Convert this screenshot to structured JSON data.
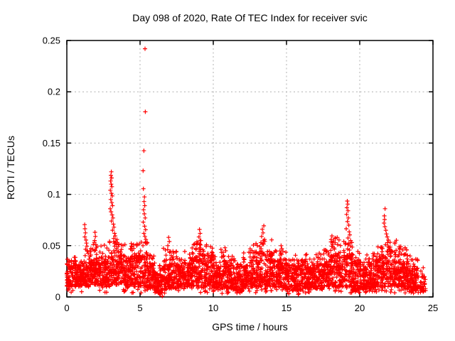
{
  "chart_data": {
    "type": "scatter",
    "title": "Day 098 of 2020, Rate Of TEC Index for receiver svic",
    "xlabel": "GPS time / hours",
    "ylabel": "ROTI / TECUs",
    "xlim": [
      0,
      25
    ],
    "ylim": [
      0,
      0.25
    ],
    "xticks": [
      0,
      5,
      10,
      15,
      20,
      25
    ],
    "xtick_labels": [
      "0",
      "5",
      "10",
      "15",
      "20",
      "25"
    ],
    "yticks": [
      0,
      0.05,
      0.1,
      0.15,
      0.2,
      0.25
    ],
    "ytick_labels": [
      "0",
      "0.05",
      "0.1",
      "0.15",
      "0.2",
      "0.25"
    ],
    "grid": true,
    "legend_position": "none",
    "marker": "plus",
    "marker_color": "#ff0000",
    "grid_color": "#b0b0b0",
    "axis_color": "#000000",
    "background_color": "#ffffff",
    "series": [
      {
        "name": "ROTI",
        "bin_hours": 0.5,
        "points_per_bin": 78,
        "band_bins": [
          [
            0.01,
            0.028,
            0.038
          ],
          [
            0.01,
            0.03,
            0.04
          ],
          [
            0.01,
            0.032,
            0.046
          ],
          [
            0.012,
            0.036,
            0.055
          ],
          [
            0.012,
            0.034,
            0.05
          ],
          [
            0.01,
            0.035,
            0.055
          ],
          [
            0.012,
            0.04,
            0.055
          ],
          [
            0.012,
            0.038,
            0.052
          ],
          [
            0.01,
            0.035,
            0.05
          ],
          [
            0.01,
            0.038,
            0.054
          ],
          [
            0.01,
            0.04,
            0.055
          ],
          [
            0.008,
            0.03,
            0.042
          ],
          [
            0.005,
            0.022,
            0.032
          ],
          [
            0.008,
            0.03,
            0.048
          ],
          [
            0.008,
            0.032,
            0.046
          ],
          [
            0.008,
            0.028,
            0.04
          ],
          [
            0.01,
            0.032,
            0.045
          ],
          [
            0.01,
            0.038,
            0.054
          ],
          [
            0.01,
            0.04,
            0.056
          ],
          [
            0.01,
            0.038,
            0.052
          ],
          [
            0.008,
            0.028,
            0.04
          ],
          [
            0.008,
            0.032,
            0.048
          ],
          [
            0.008,
            0.028,
            0.04
          ],
          [
            0.006,
            0.024,
            0.034
          ],
          [
            0.008,
            0.03,
            0.044
          ],
          [
            0.01,
            0.038,
            0.054
          ],
          [
            0.01,
            0.042,
            0.058
          ],
          [
            0.01,
            0.04,
            0.056
          ],
          [
            0.01,
            0.034,
            0.048
          ],
          [
            0.008,
            0.032,
            0.046
          ],
          [
            0.006,
            0.028,
            0.04
          ],
          [
            0.006,
            0.03,
            0.042
          ],
          [
            0.008,
            0.03,
            0.043
          ],
          [
            0.008,
            0.027,
            0.037
          ],
          [
            0.008,
            0.03,
            0.043
          ],
          [
            0.01,
            0.034,
            0.05
          ],
          [
            0.01,
            0.04,
            0.058
          ],
          [
            0.01,
            0.04,
            0.056
          ],
          [
            0.01,
            0.04,
            0.056
          ],
          [
            0.006,
            0.032,
            0.046
          ],
          [
            0.008,
            0.03,
            0.042
          ],
          [
            0.008,
            0.032,
            0.046
          ],
          [
            0.01,
            0.036,
            0.052
          ],
          [
            0.01,
            0.04,
            0.056
          ],
          [
            0.01,
            0.04,
            0.056
          ],
          [
            0.01,
            0.034,
            0.05
          ],
          [
            0.008,
            0.032,
            0.048
          ],
          [
            0.006,
            0.026,
            0.038
          ],
          [
            0.006,
            0.02,
            0.03,
            40
          ]
        ],
        "peak_points": [
          [
            1.22,
            0.0705
          ],
          [
            1.24,
            0.0665
          ],
          [
            1.27,
            0.0625
          ],
          [
            1.23,
            0.0585
          ],
          [
            1.31,
            0.0555
          ],
          [
            1.34,
            0.0525
          ],
          [
            1.37,
            0.0495
          ],
          [
            1.28,
            0.0465
          ],
          [
            1.41,
            0.0445
          ],
          [
            1.46,
            0.0425
          ],
          [
            1.92,
            0.063
          ],
          [
            1.95,
            0.059
          ],
          [
            1.9,
            0.055
          ],
          [
            1.98,
            0.051
          ],
          [
            2.02,
            0.048
          ],
          [
            1.88,
            0.045
          ],
          [
            3.04,
            0.122
          ],
          [
            3.01,
            0.1185
          ],
          [
            3.06,
            0.116
          ],
          [
            2.99,
            0.113
          ],
          [
            3.03,
            0.11
          ],
          [
            3.08,
            0.1075
          ],
          [
            2.97,
            0.104
          ],
          [
            3.05,
            0.101
          ],
          [
            3.1,
            0.0985
          ],
          [
            3.0,
            0.095
          ],
          [
            3.07,
            0.092
          ],
          [
            3.12,
            0.089
          ],
          [
            2.96,
            0.086
          ],
          [
            3.02,
            0.083
          ],
          [
            3.09,
            0.08
          ],
          [
            3.15,
            0.077
          ],
          [
            3.05,
            0.074
          ],
          [
            3.18,
            0.071
          ],
          [
            3.22,
            0.068
          ],
          [
            3.12,
            0.065
          ],
          [
            3.26,
            0.062
          ],
          [
            3.3,
            0.0595
          ],
          [
            3.2,
            0.057
          ],
          [
            3.35,
            0.0545
          ],
          [
            3.42,
            0.056
          ],
          [
            3.45,
            0.053
          ],
          [
            3.38,
            0.051
          ],
          [
            3.5,
            0.049
          ],
          [
            4.4,
            0.052
          ],
          [
            4.45,
            0.049
          ],
          [
            4.35,
            0.047
          ],
          [
            5.34,
            0.242
          ],
          [
            5.36,
            0.1805
          ],
          [
            5.26,
            0.1425
          ],
          [
            5.21,
            0.123
          ],
          [
            5.23,
            0.1055
          ],
          [
            5.3,
            0.0975
          ],
          [
            5.27,
            0.093
          ],
          [
            5.32,
            0.089
          ],
          [
            5.24,
            0.085
          ],
          [
            5.29,
            0.081
          ],
          [
            5.35,
            0.077
          ],
          [
            5.22,
            0.073
          ],
          [
            5.31,
            0.069
          ],
          [
            5.38,
            0.0655
          ],
          [
            5.26,
            0.062
          ],
          [
            5.33,
            0.059
          ],
          [
            5.4,
            0.056
          ],
          [
            5.36,
            0.053
          ],
          [
            5.2,
            0.05
          ],
          [
            6.95,
            0.058
          ],
          [
            7.0,
            0.054
          ],
          [
            6.9,
            0.05
          ],
          [
            9.06,
            0.0658
          ],
          [
            9.1,
            0.062
          ],
          [
            9.02,
            0.0585
          ],
          [
            9.15,
            0.055
          ],
          [
            9.08,
            0.0515
          ],
          [
            10.8,
            0.048
          ],
          [
            10.85,
            0.045
          ],
          [
            13.45,
            0.0693
          ],
          [
            13.35,
            0.066
          ],
          [
            13.4,
            0.0625
          ],
          [
            13.3,
            0.059
          ],
          [
            13.5,
            0.056
          ],
          [
            13.25,
            0.053
          ],
          [
            14.63,
            0.05
          ],
          [
            14.68,
            0.047
          ],
          [
            14.96,
            0.0436
          ],
          [
            18.1,
            0.0595
          ],
          [
            18.05,
            0.056
          ],
          [
            18.46,
            0.058
          ],
          [
            18.15,
            0.053
          ],
          [
            19.15,
            0.0935
          ],
          [
            19.18,
            0.0905
          ],
          [
            19.12,
            0.087
          ],
          [
            19.2,
            0.084
          ],
          [
            19.1,
            0.0805
          ],
          [
            19.22,
            0.077
          ],
          [
            19.16,
            0.0735
          ],
          [
            19.25,
            0.07
          ],
          [
            19.08,
            0.0665
          ],
          [
            19.28,
            0.0635
          ],
          [
            19.32,
            0.0605
          ],
          [
            19.2,
            0.0575
          ],
          [
            19.38,
            0.055
          ],
          [
            19.05,
            0.0525
          ],
          [
            21.73,
            0.086
          ],
          [
            21.68,
            0.079
          ],
          [
            21.7,
            0.0755
          ],
          [
            21.66,
            0.072
          ],
          [
            21.72,
            0.0685
          ],
          [
            21.78,
            0.065
          ],
          [
            21.82,
            0.0615
          ],
          [
            21.88,
            0.0585
          ],
          [
            21.95,
            0.0555
          ],
          [
            21.9,
            0.053
          ],
          [
            22.4,
            0.052
          ],
          [
            23.1,
            0.048
          ],
          [
            23.2,
            0.046
          ],
          [
            6.47,
            0.0042
          ],
          [
            6.52,
            0.0007
          ],
          [
            6.4,
            0.006
          ],
          [
            15.8,
            0.0025
          ],
          [
            16.3,
            0.004
          ],
          [
            19.7,
            0.005
          ],
          [
            19.85,
            0.006
          ],
          [
            20.4,
            0.0045
          ],
          [
            23.1,
            0.004
          ],
          [
            11.8,
            0.005
          ]
        ]
      }
    ]
  }
}
